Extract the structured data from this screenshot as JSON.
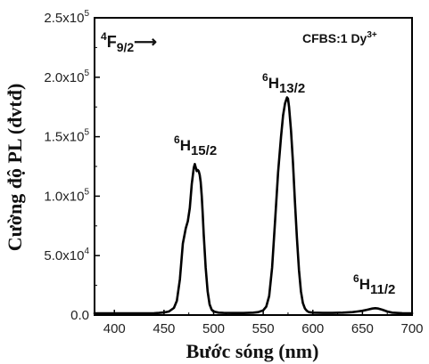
{
  "chart_data": {
    "type": "line",
    "xlabel": "Bước sóng (nm)",
    "ylabel": "Cường độ PL (đvtđ)",
    "xlim": [
      380,
      700
    ],
    "ylim": [
      0,
      250000
    ],
    "x_ticks": [
      400,
      450,
      500,
      550,
      600,
      650,
      700
    ],
    "y_ticks": [
      {
        "label": "0.0",
        "value": 0
      },
      {
        "label": "5.0x10",
        "exp": "4",
        "value": 50000
      },
      {
        "label": "1.0x10",
        "exp": "5",
        "value": 100000
      },
      {
        "label": "1.5x10",
        "exp": "5",
        "value": 150000
      },
      {
        "label": "2.0x10",
        "exp": "5",
        "value": 200000
      },
      {
        "label": "2.5x10",
        "exp": "5",
        "value": 250000
      }
    ],
    "grid": false,
    "legend": "none",
    "series": [
      {
        "color": "#000000",
        "x": [
          380,
          390,
          400,
          410,
          420,
          430,
          440,
          445,
          450,
          455,
          460,
          463,
          466,
          469,
          472,
          474,
          476,
          478,
          480,
          481,
          482,
          483,
          484,
          485,
          486,
          487,
          488,
          489,
          490,
          492,
          494,
          496,
          498,
          500,
          505,
          510,
          520,
          530,
          540,
          545,
          550,
          553,
          556,
          559,
          562,
          565,
          568,
          570,
          572,
          574,
          575,
          576,
          578,
          580,
          582,
          584,
          586,
          588,
          590,
          592,
          594,
          596,
          600,
          610,
          620,
          630,
          640,
          645,
          650,
          655,
          660,
          663,
          666,
          670,
          675,
          680,
          690,
          700
        ],
        "y": [
          1500,
          1500,
          1500,
          1500,
          1500,
          1500,
          1600,
          1800,
          2200,
          3000,
          6000,
          12000,
          30000,
          60000,
          73000,
          79000,
          90000,
          110000,
          124000,
          127000,
          124000,
          121000,
          122000,
          121000,
          118000,
          112000,
          100000,
          85000,
          68000,
          40000,
          20000,
          9000,
          4500,
          3000,
          2000,
          1800,
          1700,
          1700,
          2000,
          2500,
          4000,
          7000,
          16000,
          40000,
          80000,
          120000,
          150000,
          168000,
          178000,
          183000,
          182000,
          175000,
          155000,
          128000,
          95000,
          65000,
          38000,
          20000,
          10000,
          5500,
          3500,
          2500,
          2000,
          1800,
          1800,
          2000,
          2500,
          3000,
          3600,
          4500,
          5500,
          5800,
          5500,
          4500,
          3000,
          2000,
          1600,
          1500
        ]
      }
    ],
    "annotations": [
      {
        "base": "6",
        "main": "H",
        "sub": "15/2"
      },
      {
        "base": "6",
        "main": "H",
        "sub": "13/2"
      },
      {
        "base": "6",
        "main": "H",
        "sub": "11/2"
      },
      {
        "base": "4",
        "main": "F",
        "sub": "9/2",
        "suffix": "⟶"
      },
      {
        "text": "CFBS:1 Dy",
        "sup": "3+"
      }
    ]
  }
}
